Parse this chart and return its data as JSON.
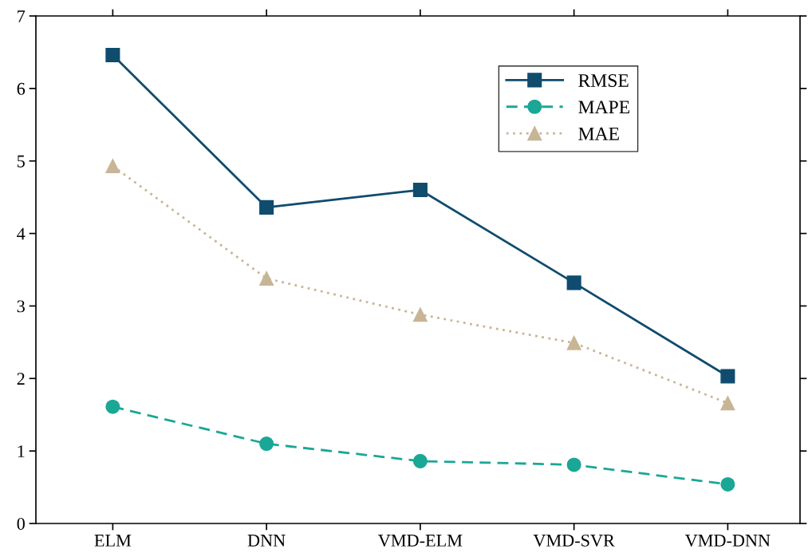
{
  "chart_data": {
    "type": "line",
    "categories": [
      "ELM",
      "DNN",
      "VMD-ELM",
      "VMD-SVR",
      "VMD-DNN"
    ],
    "series": [
      {
        "name": "RMSE",
        "color": "#0f4c6e",
        "values": [
          6.46,
          4.36,
          4.6,
          3.32,
          2.03
        ],
        "marker": "square",
        "line_style": "solid"
      },
      {
        "name": "MAPE",
        "color": "#1aa796",
        "values": [
          1.61,
          1.1,
          0.86,
          0.81,
          0.54
        ],
        "marker": "circle",
        "line_style": "dashed"
      },
      {
        "name": "MAE",
        "color": "#c8b596",
        "values": [
          4.93,
          3.38,
          2.88,
          2.49,
          1.66
        ],
        "marker": "triangle",
        "line_style": "dotted"
      }
    ],
    "ylim": [
      0,
      7
    ],
    "yticks": [
      0,
      1,
      2,
      3,
      4,
      5,
      6,
      7
    ],
    "grid": false,
    "legend": "top right"
  }
}
